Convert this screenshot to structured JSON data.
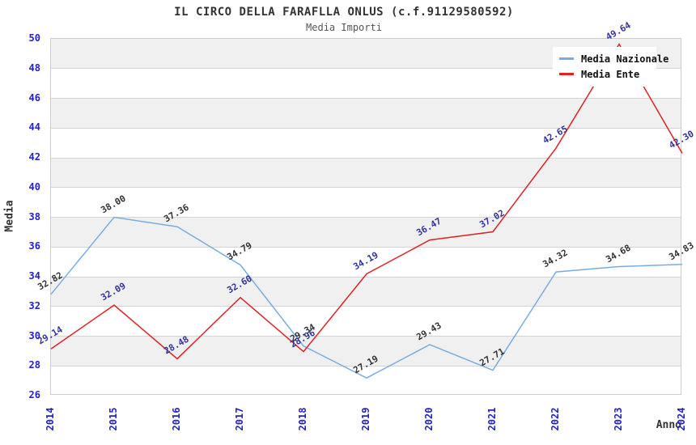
{
  "title": "IL CIRCO DELLA FARAFLLA ONLUS (c.f.91129580592)",
  "subtitle": "Media Importi",
  "axes": {
    "x_title": "Anno",
    "y_title": "Media"
  },
  "legend": {
    "position": "top-right",
    "entries": [
      {
        "label": "Media Nazionale",
        "color": "#76ade4"
      },
      {
        "label": "Media Ente",
        "color": "#e02222"
      }
    ]
  },
  "colors": {
    "background": "#ffffff",
    "band_fill": "#f0f0f0",
    "grid_line": "#d4d4d4",
    "plot_border": "#cccccc",
    "tick_text": "#2222cc",
    "title_text": "#333333",
    "subtitle_text": "#555555",
    "series_nazionale_line": "#76ade4",
    "series_nazionale_label": "#333333",
    "series_ente_line": "#e02222",
    "series_ente_label": "#333399"
  },
  "chart_data": {
    "type": "line",
    "title": "IL CIRCO DELLA FARAFLLA ONLUS (c.f.91129580592)",
    "subtitle": "Media Importi",
    "xlabel": "Anno",
    "ylabel": "Media",
    "x": [
      2014,
      2015,
      2016,
      2017,
      2018,
      2019,
      2020,
      2021,
      2022,
      2023,
      2024
    ],
    "ylim": [
      26,
      50
    ],
    "ytick_step": 2,
    "grid": "horizontal-bands",
    "legend_position": "top-right",
    "series": [
      {
        "name": "Media Nazionale",
        "line_color": "#76ade4",
        "label_color": "#333333",
        "values": [
          32.82,
          38.0,
          37.36,
          34.79,
          29.34,
          27.19,
          29.43,
          27.71,
          34.32,
          34.68,
          34.83
        ]
      },
      {
        "name": "Media Ente",
        "line_color": "#e02222",
        "label_color": "#333399",
        "values": [
          29.14,
          32.09,
          28.48,
          32.6,
          28.96,
          34.19,
          36.47,
          37.02,
          42.65,
          49.64,
          42.3
        ]
      }
    ]
  }
}
